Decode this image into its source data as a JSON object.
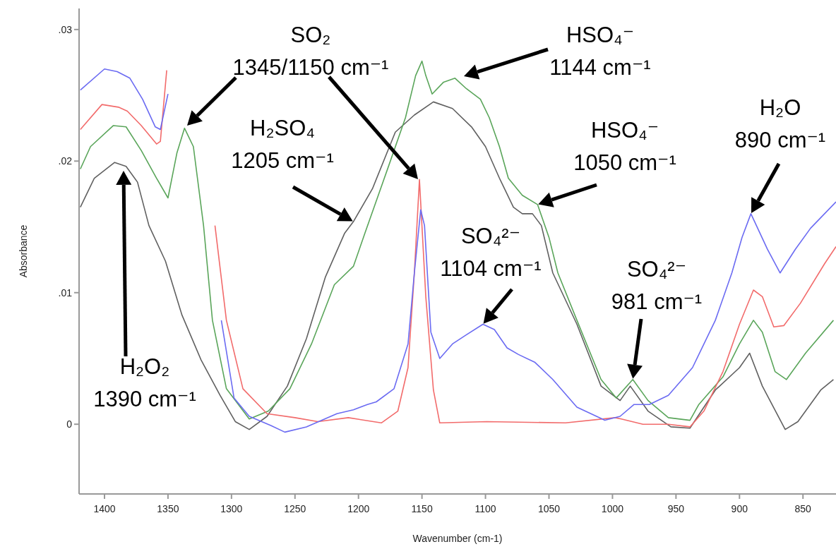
{
  "chart_data": {
    "type": "line",
    "xlabel": "Wavenumber (cm-1)",
    "ylabel": "Absorbance",
    "xlim": [
      1420,
      824
    ],
    "xticks": [
      1400,
      1350,
      1300,
      1250,
      1200,
      1150,
      1100,
      1050,
      1000,
      950,
      900,
      850
    ],
    "ylim": [
      -0.0053,
      0.0316
    ],
    "yticks": [
      {
        "value": 0,
        "label": "0"
      },
      {
        "value": 0.01,
        "label": ".01"
      },
      {
        "value": 0.02,
        "label": ".02"
      },
      {
        "value": 0.03,
        "label": ".03"
      }
    ],
    "series": [
      {
        "color": "#6b6bf2",
        "x": [
          1419,
          1400,
          1390,
          1380,
          1370,
          1360,
          1356,
          1350,
          1347,
          1346,
          1328,
          1308,
          1298,
          1286,
          1269,
          1258,
          1241,
          1217,
          1204,
          1193,
          1186,
          1172,
          1161,
          1156,
          1151,
          1148,
          1143,
          1136,
          1126,
          1115,
          1102,
          1093,
          1083,
          1074,
          1061,
          1047,
          1028,
          1006,
          994,
          983,
          971,
          956,
          937,
          919,
          906,
          898,
          891,
          878,
          868,
          856,
          844,
          824
        ],
        "values": [
          0.0254,
          0.027,
          0.0268,
          0.0263,
          0.0247,
          0.0226,
          0.0224,
          0.0251,
          null,
          null,
          null,
          0.0079,
          0.002,
          0.0006,
          -0.0001,
          -0.0006,
          -0.0002,
          0.0008,
          0.0011,
          0.0015,
          0.0017,
          0.0027,
          0.0061,
          0.0115,
          0.0163,
          0.0151,
          0.007,
          0.005,
          0.0061,
          0.0068,
          0.0076,
          0.0072,
          0.0058,
          0.0053,
          0.0047,
          0.0034,
          0.0013,
          0.0003,
          0.0006,
          0.0015,
          0.0015,
          0.0022,
          0.0043,
          0.0079,
          0.0115,
          0.0142,
          0.016,
          0.0133,
          0.0115,
          0.0133,
          0.0149,
          0.0169
        ]
      },
      {
        "color": "#f26b6b",
        "x": [
          1419,
          1402,
          1389,
          1382,
          1371,
          1359,
          1356,
          1351,
          1348,
          1347,
          1323,
          1313,
          1304,
          1291,
          1272,
          1250,
          1232,
          1208,
          1182,
          1169,
          1161,
          1156,
          1152,
          1147,
          1141,
          1136,
          1099,
          1037,
          998,
          993,
          976,
          956,
          939,
          928,
          913,
          900,
          889,
          882,
          873,
          865,
          852,
          833,
          824
        ],
        "values": [
          0.0224,
          0.0243,
          0.0241,
          0.0238,
          0.0227,
          0.0213,
          0.0215,
          0.0269,
          null,
          null,
          null,
          0.0151,
          0.0079,
          0.0027,
          0.0008,
          0.0005,
          0.0002,
          0.0005,
          0.0001,
          0.001,
          0.0043,
          0.0115,
          0.0186,
          0.0097,
          0.0026,
          0.0001,
          0.0002,
          0.0001,
          0.0005,
          0.0004,
          0,
          0,
          -0.0002,
          0.001,
          0.004,
          0.0076,
          0.0102,
          0.0097,
          0.0074,
          0.0075,
          0.0092,
          0.0122,
          0.0135
        ]
      },
      {
        "color": "#5aa55a",
        "x": [
          1419,
          1411,
          1393,
          1383,
          1371,
          1359,
          1350,
          1343,
          1337,
          1330,
          1322,
          1315,
          1304,
          1286,
          1271,
          1254,
          1237,
          1219,
          1204,
          1195,
          1176,
          1163,
          1155,
          1150,
          1147,
          1142,
          1133,
          1124,
          1115,
          1104,
          1097,
          1089,
          1082,
          1071,
          1059,
          1050,
          1043,
          1028,
          1009,
          997,
          984,
          972,
          956,
          939,
          932,
          913,
          900,
          889,
          882,
          872,
          863,
          848,
          826
        ],
        "values": [
          0.0194,
          0.0211,
          0.0227,
          0.0226,
          0.0208,
          0.0187,
          0.0172,
          0.0206,
          0.0225,
          0.0211,
          0.0151,
          0.0079,
          0.0027,
          0.0004,
          0.001,
          0.0027,
          0.0061,
          0.0106,
          0.012,
          0.0145,
          0.0197,
          0.0233,
          0.0265,
          0.0276,
          0.0265,
          0.0251,
          0.026,
          0.0263,
          0.0255,
          0.0247,
          0.0233,
          0.0211,
          0.0187,
          0.0174,
          0.0167,
          0.0142,
          0.0115,
          0.0079,
          0.0034,
          0.002,
          0.0034,
          0.0018,
          0.0005,
          0.0003,
          0.0015,
          0.0036,
          0.0061,
          0.0079,
          0.007,
          0.004,
          0.0034,
          0.0054,
          0.0079
        ]
      },
      {
        "color": "#606060",
        "x": [
          1419,
          1408,
          1392,
          1383,
          1374,
          1365,
          1352,
          1339,
          1324,
          1309,
          1297,
          1286,
          1272,
          1256,
          1241,
          1226,
          1211,
          1204,
          1189,
          1171,
          1156,
          1141,
          1126,
          1111,
          1100,
          1089,
          1078,
          1071,
          1063,
          1056,
          1047,
          1028,
          1009,
          994,
          986,
          972,
          954,
          939,
          919,
          900,
          892,
          882,
          864,
          854,
          836,
          826
        ],
        "values": [
          0.0165,
          0.0187,
          0.0199,
          0.0196,
          0.0184,
          0.0151,
          0.0124,
          0.0083,
          0.0049,
          0.0022,
          0.0002,
          -0.0004,
          0.0006,
          0.0029,
          0.0065,
          0.0112,
          0.0145,
          0.0154,
          0.0179,
          0.0222,
          0.0235,
          0.0245,
          0.024,
          0.0226,
          0.0211,
          0.0187,
          0.0165,
          0.016,
          0.016,
          0.0151,
          0.0115,
          0.0076,
          0.0029,
          0.0018,
          0.0029,
          0.001,
          -0.0002,
          -0.0003,
          0.0026,
          0.0043,
          0.0054,
          0.0029,
          -0.0004,
          0.0002,
          0.0026,
          0.0034
        ]
      }
    ],
    "annotations": [
      "H₂O₂\n1390 cm⁻¹",
      "SO₂\n1345/1150 cm⁻¹",
      {
        "text": "H₂SO₄\n1205 cm⁻¹",
        "x": 1204,
        "y": 0.0154
      },
      "HSO₄⁻\n1144 cm⁻¹",
      {
        "text": "HSO₄⁻\n1050 cm⁻¹",
        "x": 1059,
        "y": 0.0167
      },
      {
        "text": "SO₄²⁻\n1104 cm⁻¹",
        "x": 1102,
        "y": 0.0076
      },
      {
        "text": "SO₄²⁻\n981 cm⁻¹",
        "x": 984,
        "y": 0.0034
      },
      {
        "text": "H₂O\n890 cm⁻¹",
        "x": 891,
        "y": 0.016
      }
    ]
  }
}
